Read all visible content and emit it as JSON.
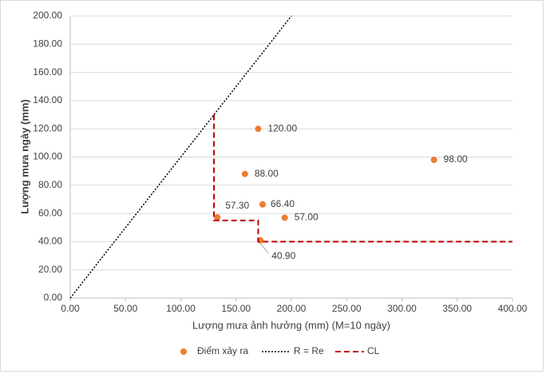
{
  "chart_data": {
    "type": "scatter",
    "x_label": "Lượng mưa ảnh hưởng (mm) (M=10 ngày)",
    "y_label": "Lượng mưa ngày (mm)",
    "xlim": [
      0,
      400
    ],
    "ylim": [
      0,
      200
    ],
    "xticks": [
      {
        "value": 0,
        "label": "0.00"
      },
      {
        "value": 50,
        "label": "50.00"
      },
      {
        "value": 100,
        "label": "100.00"
      },
      {
        "value": 150,
        "label": "150.00"
      },
      {
        "value": 200,
        "label": "200.00"
      },
      {
        "value": 250,
        "label": "250.00"
      },
      {
        "value": 300,
        "label": "300.00"
      },
      {
        "value": 350,
        "label": "350.00"
      },
      {
        "value": 400,
        "label": "400.00"
      }
    ],
    "yticks": [
      {
        "value": 0,
        "label": "0.00"
      },
      {
        "value": 20,
        "label": "20.00"
      },
      {
        "value": 40,
        "label": "40.00"
      },
      {
        "value": 60,
        "label": "60.00"
      },
      {
        "value": 80,
        "label": "80.00"
      },
      {
        "value": 100,
        "label": "100.00"
      },
      {
        "value": 120,
        "label": "120.00"
      },
      {
        "value": 140,
        "label": "140.00"
      },
      {
        "value": 160,
        "label": "160.00"
      },
      {
        "value": 180,
        "label": "180.00"
      },
      {
        "value": 200,
        "label": "200.00"
      }
    ],
    "grid": true,
    "series": [
      {
        "name": "Điểm xảy ra",
        "type": "scatter",
        "color": "#ed7d31",
        "x": [
          170,
          158,
          133,
          174,
          194,
          172,
          329
        ],
        "values": [
          120,
          88,
          57.3,
          66.4,
          57,
          40.9,
          98
        ],
        "value_labels": [
          "120.00",
          "88.00",
          "57.30",
          "66.40",
          "57.00",
          "40.90",
          "98.00"
        ]
      },
      {
        "name": "R = Re",
        "type": "line",
        "dash": "dotted",
        "color": "#000000",
        "x": [
          0,
          200
        ],
        "values": [
          0,
          200
        ]
      },
      {
        "name": "CL",
        "type": "line",
        "dash": "dashed",
        "color": "#c00000",
        "x": [
          130,
          130,
          170,
          170,
          400
        ],
        "values": [
          130,
          55,
          55,
          40,
          40
        ]
      }
    ]
  }
}
